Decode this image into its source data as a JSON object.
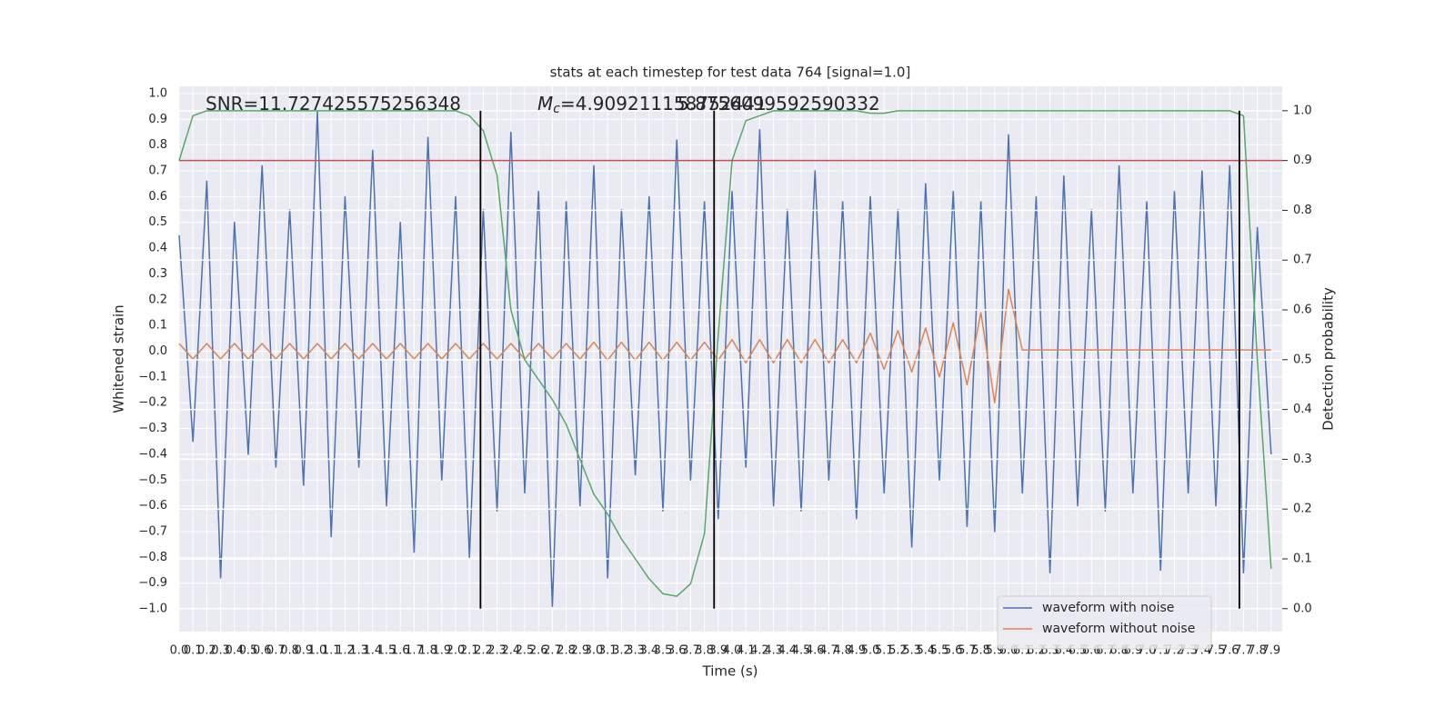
{
  "chart_data": {
    "type": "line",
    "title": "stats at each timestep for test data 764 [signal=1.0]",
    "xlabel": "Time (s)",
    "ylabel": "Whitened strain",
    "y2label": "Detection probability",
    "grid": true,
    "legend": "lower right",
    "xlim": [
      0,
      7.98
    ],
    "ylim": [
      -1.088,
      1.028
    ],
    "y2lim": [
      -0.046,
      1.049
    ],
    "xticks": [
      {
        "value": 0,
        "label": "0.0"
      },
      0.1,
      0.2,
      0.3,
      0.4,
      0.5,
      0.6,
      0.7,
      0.8,
      0.9,
      {
        "value": 1,
        "label": "1.0"
      },
      1.1,
      1.2,
      1.3,
      1.4,
      1.5,
      1.6,
      1.7,
      1.8,
      1.9,
      {
        "value": 2,
        "label": "2.0"
      },
      2.1,
      2.2,
      2.3,
      2.4,
      2.5,
      2.6,
      2.7,
      2.8,
      2.9,
      {
        "value": 3,
        "label": "3.0"
      },
      3.1,
      3.2,
      3.3,
      3.4,
      3.5,
      3.6,
      3.7,
      3.8,
      3.9,
      {
        "value": 4,
        "label": "4.0"
      },
      4.1,
      4.2,
      4.3,
      4.4,
      4.5,
      4.6,
      4.7,
      4.8,
      4.9,
      {
        "value": 5,
        "label": "5.0"
      },
      5.1,
      5.2,
      5.3,
      5.4,
      5.5,
      5.6,
      5.7,
      5.8,
      5.9,
      {
        "value": 6,
        "label": "6.0"
      },
      6.1,
      6.2,
      6.3,
      6.4,
      6.5,
      6.6,
      6.7,
      6.8,
      6.9,
      {
        "value": 7,
        "label": "7.0"
      },
      7.1,
      7.2,
      7.3,
      7.4,
      7.5,
      7.6,
      7.7,
      7.8,
      7.9
    ],
    "yticks": [
      {
        "value": -1,
        "label": "−1.0"
      },
      {
        "value": -0.9,
        "label": "−0.9"
      },
      {
        "value": -0.8,
        "label": "−0.8"
      },
      {
        "value": -0.7,
        "label": "−0.7"
      },
      {
        "value": -0.6,
        "label": "−0.6"
      },
      {
        "value": -0.5,
        "label": "−0.5"
      },
      {
        "value": -0.4,
        "label": "−0.4"
      },
      {
        "value": -0.3,
        "label": "−0.3"
      },
      {
        "value": -0.2,
        "label": "−0.2"
      },
      {
        "value": -0.1,
        "label": "−0.1"
      },
      {
        "value": 0,
        "label": "0.0"
      },
      0.1,
      0.2,
      0.3,
      0.4,
      0.5,
      0.6,
      0.7,
      0.8,
      0.9,
      {
        "value": 1,
        "label": "1.0"
      }
    ],
    "y2ticks": [
      {
        "value": 0,
        "label": "0.0"
      },
      0.1,
      0.2,
      0.3,
      0.4,
      0.5,
      0.6,
      0.7,
      0.8,
      0.9,
      {
        "value": 1,
        "label": "1.0"
      }
    ],
    "x": [
      0,
      0.1,
      0.2,
      0.3,
      0.4,
      0.5,
      0.6,
      0.7,
      0.8,
      0.9,
      1,
      1.1,
      1.2,
      1.3,
      1.4,
      1.5,
      1.6,
      1.7,
      1.8,
      1.9,
      2,
      2.1,
      2.2,
      2.3,
      2.4,
      2.5,
      2.6,
      2.7,
      2.8,
      2.9,
      3,
      3.1,
      3.2,
      3.3,
      3.4,
      3.5,
      3.6,
      3.7,
      3.8,
      3.9,
      4,
      4.1,
      4.2,
      4.3,
      4.4,
      4.5,
      4.6,
      4.7,
      4.8,
      4.9,
      5,
      5.1,
      5.2,
      5.3,
      5.4,
      5.5,
      5.6,
      5.7,
      5.8,
      5.9,
      6,
      6.1,
      6.2,
      6.3,
      6.4,
      6.5,
      6.6,
      6.7,
      6.8,
      6.9,
      7,
      7.1,
      7.2,
      7.3,
      7.4,
      7.5,
      7.6,
      7.7,
      7.8,
      7.9
    ],
    "series": [
      {
        "name": "waveform with noise",
        "color": "#4c72b0",
        "values": [
          0.45,
          -0.35,
          0.66,
          -0.88,
          0.5,
          -0.4,
          0.72,
          -0.45,
          0.55,
          -0.52,
          0.93,
          -0.72,
          0.6,
          -0.45,
          0.78,
          -0.6,
          0.5,
          -0.78,
          0.83,
          -0.5,
          0.6,
          -0.8,
          0.55,
          -0.62,
          0.85,
          -0.55,
          0.62,
          -0.99,
          0.58,
          -0.6,
          0.72,
          -0.88,
          0.55,
          -0.48,
          0.6,
          -0.62,
          0.82,
          -0.5,
          0.58,
          -0.65,
          0.62,
          -0.45,
          0.86,
          -0.6,
          0.55,
          -0.62,
          0.7,
          -0.5,
          0.58,
          -0.65,
          0.6,
          -0.55,
          0.55,
          -0.76,
          0.65,
          -0.5,
          0.62,
          -0.68,
          0.58,
          -0.7,
          0.84,
          -0.55,
          0.6,
          -0.86,
          0.68,
          -0.6,
          0.55,
          -0.62,
          0.72,
          -0.55,
          0.58,
          -0.85,
          0.62,
          -0.55,
          0.7,
          -0.6,
          0.72,
          -0.86,
          0.48,
          -0.4
        ]
      },
      {
        "name": "waveform without noise",
        "color": "#dd8452",
        "values": [
          0.03,
          -0.03,
          0.03,
          -0.03,
          0.03,
          -0.03,
          0.03,
          -0.03,
          0.03,
          -0.03,
          0.03,
          -0.03,
          0.03,
          -0.03,
          0.03,
          -0.03,
          0.03,
          -0.03,
          0.03,
          -0.03,
          0.03,
          -0.03,
          0.03,
          -0.03,
          0.03,
          -0.03,
          0.03,
          -0.03,
          0.03,
          -0.03,
          0.035,
          -0.035,
          0.035,
          -0.035,
          0.035,
          -0.035,
          0.035,
          -0.035,
          0.035,
          -0.035,
          0.045,
          -0.045,
          0.045,
          -0.045,
          0.045,
          -0.045,
          0.045,
          -0.045,
          0.045,
          -0.045,
          0.07,
          -0.07,
          0.08,
          -0.08,
          0.09,
          -0.1,
          0.11,
          -0.13,
          0.15,
          -0.2,
          0.24,
          0.005,
          0.005,
          0.005,
          0.005,
          0.005,
          0.005,
          0.005,
          0.005,
          0.005,
          0.005,
          0.005,
          0.005,
          0.005,
          0.005,
          0.005,
          0.005,
          0.005,
          0.005,
          0.005
        ]
      },
      {
        "color": "#55a868",
        "axis": "y2",
        "values": [
          0.9,
          0.99,
          1.0,
          1.0,
          1.0,
          1.0,
          1.0,
          1.0,
          1.0,
          1.0,
          1.0,
          1.0,
          1.0,
          1.0,
          1.0,
          1.0,
          1.0,
          1.0,
          1.0,
          1.0,
          1.0,
          0.99,
          0.96,
          0.87,
          0.6,
          0.5,
          0.46,
          0.42,
          0.37,
          0.3,
          0.23,
          0.19,
          0.14,
          0.1,
          0.06,
          0.03,
          0.025,
          0.05,
          0.15,
          0.55,
          0.9,
          0.98,
          0.99,
          1.0,
          1.0,
          1.0,
          1.0,
          1.0,
          1.0,
          1.0,
          0.995,
          0.995,
          1.0,
          1.0,
          1.0,
          1.0,
          1.0,
          1.0,
          1.0,
          1.0,
          1.0,
          1.0,
          1.0,
          1.0,
          1.0,
          1.0,
          1.0,
          1.0,
          1.0,
          1.0,
          1.0,
          1.0,
          1.0,
          1.0,
          1.0,
          1.0,
          1.0,
          0.99,
          0.5,
          0.08
        ]
      }
    ],
    "threshold": {
      "value": 0.9,
      "axis": "y2",
      "color": "#c44e52"
    },
    "vlines": {
      "values": [
        2.18,
        3.87,
        7.67
      ],
      "color": "#000000"
    },
    "annotations": [
      {
        "text": "SNR=11.727425575256348"
      },
      {
        "symbol": "M",
        "subscript": "c",
        "text": "=4.909211158752441"
      },
      {
        "text": "5.8756099592590332"
      }
    ]
  }
}
